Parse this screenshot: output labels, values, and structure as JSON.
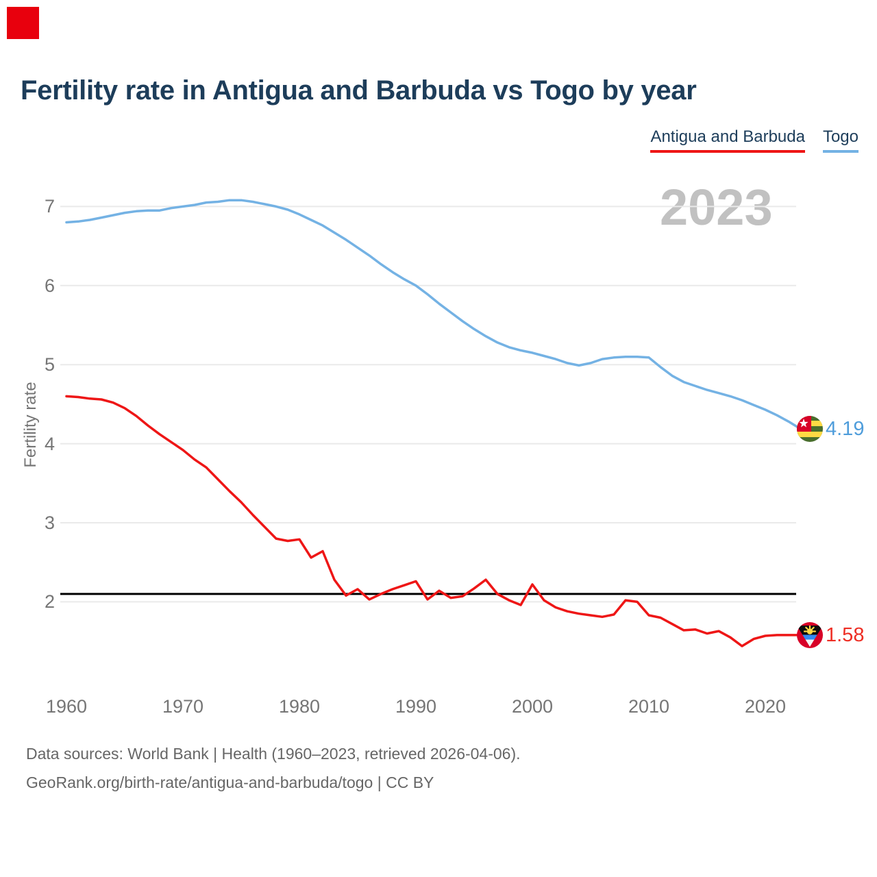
{
  "marker": {
    "note": "red square overlay at top-left of screenshot"
  },
  "title": "Fertility rate in Antigua and Barbuda vs Togo by year",
  "watermark": "2023",
  "ylabel": "Fertility rate",
  "legend": [
    {
      "label": "Antigua and Barbuda",
      "color": "#ee1616"
    },
    {
      "label": "Togo",
      "color": "#74b2e4"
    }
  ],
  "footer": {
    "line1": "Data sources: World Bank | Health (1960–2023, retrieved 2026-04-06).",
    "line2": "GeoRank.org/birth-rate/antigua-and-barbuda/togo | CC BY"
  },
  "colors": {
    "title": "#1d3d5a",
    "axis_labels": "#757575",
    "watermark": "#c1c1c1",
    "grid": "#eaeaea",
    "footer": "#666666",
    "reference_line": "#000000",
    "marker": "#e8000d"
  },
  "chart_data": {
    "type": "line",
    "title": "Fertility rate in Antigua and Barbuda vs Togo by year",
    "xlabel": "",
    "ylabel": "Fertility rate",
    "grid": true,
    "legend_position": "top-right",
    "x_ticks": [
      1960,
      1970,
      1980,
      1990,
      2000,
      2010,
      2020
    ],
    "y_ticks": [
      2,
      3,
      4,
      5,
      6,
      7
    ],
    "xlim": [
      1959.5,
      2024.5
    ],
    "ylim": [
      0.9,
      7.35
    ],
    "reference_line": {
      "value": 2.1,
      "color": "#000000"
    },
    "x": [
      1960,
      1961,
      1962,
      1963,
      1964,
      1965,
      1966,
      1967,
      1968,
      1969,
      1970,
      1971,
      1972,
      1973,
      1974,
      1975,
      1976,
      1977,
      1978,
      1979,
      1980,
      1981,
      1982,
      1983,
      1984,
      1985,
      1986,
      1987,
      1988,
      1989,
      1990,
      1991,
      1992,
      1993,
      1994,
      1995,
      1996,
      1997,
      1998,
      1999,
      2000,
      2001,
      2002,
      2003,
      2004,
      2005,
      2006,
      2007,
      2008,
      2009,
      2010,
      2011,
      2012,
      2013,
      2014,
      2015,
      2016,
      2017,
      2018,
      2019,
      2020,
      2021,
      2022,
      2023
    ],
    "series": [
      {
        "name": "Antigua and Barbuda",
        "color": "#ee1616",
        "label_color": "#ee2e24",
        "end_label": "1.58",
        "values": [
          4.6,
          4.59,
          4.57,
          4.56,
          4.52,
          4.45,
          4.35,
          4.23,
          4.12,
          4.02,
          3.92,
          3.8,
          3.7,
          3.55,
          3.4,
          3.26,
          3.1,
          2.95,
          2.8,
          2.77,
          2.79,
          2.56,
          2.64,
          2.28,
          2.08,
          2.16,
          2.03,
          2.1,
          2.16,
          2.21,
          2.26,
          2.03,
          2.14,
          2.05,
          2.07,
          2.17,
          2.28,
          2.1,
          2.02,
          1.96,
          2.22,
          2.02,
          1.93,
          1.88,
          1.85,
          1.83,
          1.81,
          1.84,
          2.02,
          2.0,
          1.83,
          1.8,
          1.72,
          1.64,
          1.65,
          1.6,
          1.63,
          1.55,
          1.44,
          1.53,
          1.57,
          1.58,
          1.58,
          1.58
        ]
      },
      {
        "name": "Togo",
        "color": "#74b2e4",
        "label_color": "#4f9ddb",
        "end_label": "4.19",
        "values": [
          6.8,
          6.81,
          6.83,
          6.86,
          6.89,
          6.92,
          6.94,
          6.95,
          6.95,
          6.98,
          7.0,
          7.02,
          7.05,
          7.06,
          7.08,
          7.08,
          7.06,
          7.03,
          7.0,
          6.96,
          6.9,
          6.83,
          6.76,
          6.67,
          6.58,
          6.48,
          6.38,
          6.27,
          6.17,
          6.08,
          6.0,
          5.89,
          5.77,
          5.66,
          5.55,
          5.45,
          5.36,
          5.28,
          5.22,
          5.18,
          5.15,
          5.11,
          5.07,
          5.02,
          4.99,
          5.02,
          5.07,
          5.09,
          5.1,
          5.1,
          5.09,
          4.97,
          4.86,
          4.78,
          4.73,
          4.68,
          4.64,
          4.6,
          4.55,
          4.49,
          4.43,
          4.36,
          4.28,
          4.19
        ]
      }
    ]
  }
}
